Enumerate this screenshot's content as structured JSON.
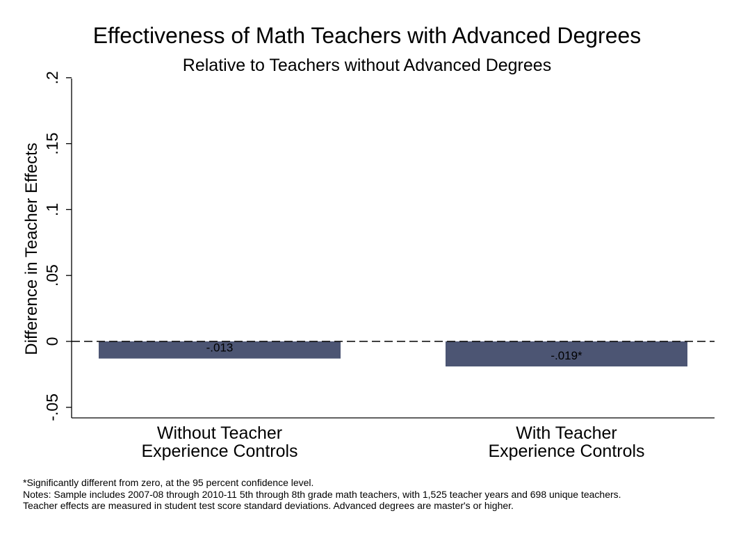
{
  "chart_data": {
    "type": "bar",
    "title": "Effectiveness of Math Teachers with Advanced Degrees",
    "subtitle": "Relative to Teachers without Advanced Degrees",
    "xlabel": "",
    "ylabel": "Difference in Teacher Effects",
    "ylim": [
      -0.055,
      0.2
    ],
    "yticks": [
      -0.05,
      0,
      0.05,
      0.1,
      0.15,
      0.2
    ],
    "ytick_labels": [
      "-.05",
      "0",
      ".05",
      ".1",
      ".15",
      ".2"
    ],
    "categories": [
      [
        "Without Teacher",
        "Experience Controls"
      ],
      [
        "With Teacher",
        "Experience Controls"
      ]
    ],
    "values": [
      -0.013,
      -0.019
    ],
    "data_labels": [
      "-.013",
      "-.019*"
    ],
    "reference_line": {
      "y": 0,
      "style": "dashed"
    },
    "bar_color": "#4c5573",
    "grid": false,
    "legend": "none"
  },
  "notes": [
    "*Significantly different from zero, at the 95 percent confidence  level.",
    "Notes: Sample includes 2007-08 through 2010-11 5th through 8th grade math teachers, with 1,525 teacher years and 698 unique teachers.",
    "Teacher effects are measured in student test score standard deviations. Advanced degrees are master's or higher."
  ]
}
